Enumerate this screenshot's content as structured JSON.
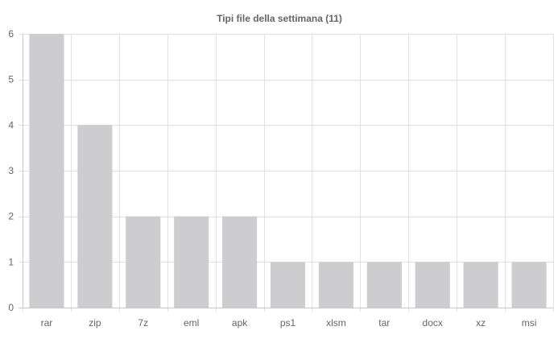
{
  "chart_data": {
    "type": "bar",
    "title": "Tipi file della settimana (11)",
    "xlabel": "",
    "ylabel": "",
    "categories": [
      "rar",
      "zip",
      "7z",
      "eml",
      "apk",
      "ps1",
      "xlsm",
      "tar",
      "docx",
      "xz",
      "msi"
    ],
    "values": [
      6,
      4,
      2,
      2,
      2,
      1,
      1,
      1,
      1,
      1,
      1
    ],
    "ylim": [
      0,
      6
    ],
    "yticks": [
      0,
      1,
      2,
      3,
      4,
      5,
      6
    ],
    "grid": true,
    "legend": "none",
    "colors": {
      "bar": "#cdcdcf",
      "grid": "#e2e2e2",
      "axis": "#c8c8c8",
      "text": "#666666"
    }
  }
}
